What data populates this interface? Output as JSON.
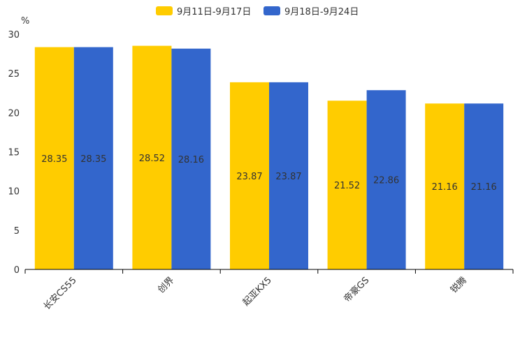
{
  "chart_data": {
    "type": "bar",
    "title": "",
    "xlabel": "",
    "ylabel": "%",
    "ylim": [
      0,
      30
    ],
    "yticks": [
      0,
      5,
      10,
      15,
      20,
      25,
      30
    ],
    "categories": [
      "长安CS55",
      "创界",
      "起亚KX5",
      "帝豪GS",
      "锐腾"
    ],
    "series": [
      {
        "name": "9月11日-9月17日",
        "color": "#ffcc00",
        "values": [
          28.35,
          28.52,
          23.87,
          21.52,
          21.16
        ]
      },
      {
        "name": "9月18日-9月24日",
        "color": "#3366cc",
        "values": [
          28.35,
          28.16,
          23.87,
          22.86,
          21.16
        ]
      }
    ],
    "legend_position": "top-center",
    "grid": false
  }
}
